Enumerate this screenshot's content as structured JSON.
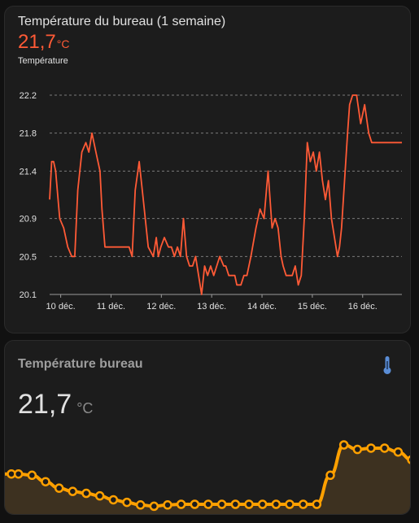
{
  "card1": {
    "title": "Température du bureau (1 semaine)",
    "value": "21,7",
    "unit": "°C",
    "series_label": "Température"
  },
  "card2": {
    "title": "Température bureau",
    "icon": "thermometer-icon",
    "value": "21,7",
    "unit": "°C"
  },
  "colors": {
    "accent": "#ff5a36",
    "spark": "#ffa000",
    "spark_fill": "#3d3120",
    "icon": "#5a8dd6"
  },
  "chart_data": [
    {
      "type": "line",
      "title": "Température du bureau (1 semaine)",
      "ylabel": "",
      "xlabel": "",
      "y_ticks": [
        "22.2",
        "21.8",
        "21.4",
        "20.9",
        "20.5",
        "20.1"
      ],
      "y_tick_values": [
        22.2,
        21.8,
        21.4,
        20.9,
        20.5,
        20.1
      ],
      "ylim": [
        20.1,
        22.2
      ],
      "x_ticks": [
        "10 déc.",
        "11 déc.",
        "12 déc.",
        "13 déc.",
        "14 déc.",
        "15 déc.",
        "16 déc."
      ],
      "xlim": [
        -0.22,
        6.78
      ],
      "grid": true,
      "series": [
        {
          "x": [
            -0.22,
            -0.18,
            -0.14,
            -0.1,
            -0.02,
            0.06,
            0.14,
            0.22,
            0.28,
            0.34,
            0.42,
            0.5,
            0.56,
            0.62,
            0.7,
            0.78,
            0.82,
            0.88,
            0.94,
            1.02,
            1.08,
            1.14,
            1.22,
            1.3,
            1.36,
            1.42,
            1.48,
            1.56,
            1.64,
            1.74,
            1.84,
            1.9,
            1.94,
            1.99,
            2.06,
            2.14,
            2.2,
            2.26,
            2.32,
            2.38,
            2.44,
            2.5,
            2.56,
            2.62,
            2.68,
            2.74,
            2.8,
            2.86,
            2.92,
            2.98,
            3.04,
            3.1,
            3.16,
            3.24,
            3.28,
            3.34,
            3.4,
            3.46,
            3.5,
            3.58,
            3.64,
            3.7,
            3.78,
            3.88,
            3.96,
            4.04,
            4.12,
            4.2,
            4.26,
            4.32,
            4.38,
            4.42,
            4.48,
            4.54,
            4.6,
            4.66,
            4.72,
            4.78,
            4.84,
            4.9,
            4.96,
            5.02,
            5.08,
            5.14,
            5.2,
            5.26,
            5.32,
            5.38,
            5.44,
            5.5,
            5.54,
            5.58,
            5.64,
            5.7,
            5.74,
            5.8,
            5.88,
            5.96,
            6.04,
            6.12,
            6.18,
            6.24,
            6.32,
            6.4,
            6.46,
            6.52,
            6.56,
            6.6,
            6.66,
            6.7,
            6.74,
            6.78
          ],
          "y": [
            21.1,
            21.5,
            21.5,
            21.4,
            20.9,
            20.8,
            20.6,
            20.5,
            20.5,
            21.2,
            21.6,
            21.7,
            21.6,
            21.8,
            21.6,
            21.4,
            21.0,
            20.6,
            20.6,
            20.6,
            20.6,
            20.6,
            20.6,
            20.6,
            20.6,
            20.5,
            21.2,
            21.5,
            21.1,
            20.6,
            20.5,
            20.7,
            20.5,
            20.6,
            20.7,
            20.6,
            20.6,
            20.5,
            20.6,
            20.5,
            20.9,
            20.5,
            20.4,
            20.4,
            20.5,
            20.3,
            20.1,
            20.4,
            20.3,
            20.4,
            20.3,
            20.4,
            20.5,
            20.4,
            20.4,
            20.3,
            20.3,
            20.3,
            20.2,
            20.2,
            20.3,
            20.3,
            20.5,
            20.8,
            21.0,
            20.9,
            21.4,
            20.8,
            20.9,
            20.8,
            20.5,
            20.4,
            20.3,
            20.3,
            20.3,
            20.4,
            20.2,
            20.3,
            20.9,
            21.7,
            21.5,
            21.6,
            21.4,
            21.6,
            21.3,
            21.1,
            21.3,
            20.9,
            20.7,
            20.5,
            20.6,
            20.8,
            21.3,
            21.8,
            22.1,
            22.2,
            22.2,
            21.9,
            22.1,
            21.8,
            21.7,
            21.7,
            21.7,
            21.7,
            21.7,
            21.7,
            21.7,
            21.7,
            21.7,
            21.7,
            21.7,
            21.7
          ]
        }
      ]
    },
    {
      "type": "area",
      "title": "",
      "series": [
        {
          "values": [
            20.9,
            20.9,
            20.88,
            20.78,
            20.68,
            20.63,
            20.6,
            20.56,
            20.5,
            20.46,
            20.42,
            20.4,
            20.42,
            20.43,
            20.43,
            20.43,
            20.43,
            20.43,
            20.43,
            20.43,
            20.43,
            20.43,
            20.43,
            20.43,
            20.88,
            21.35,
            21.28,
            21.3,
            21.3,
            21.24,
            21.12
          ]
        }
      ]
    }
  ]
}
